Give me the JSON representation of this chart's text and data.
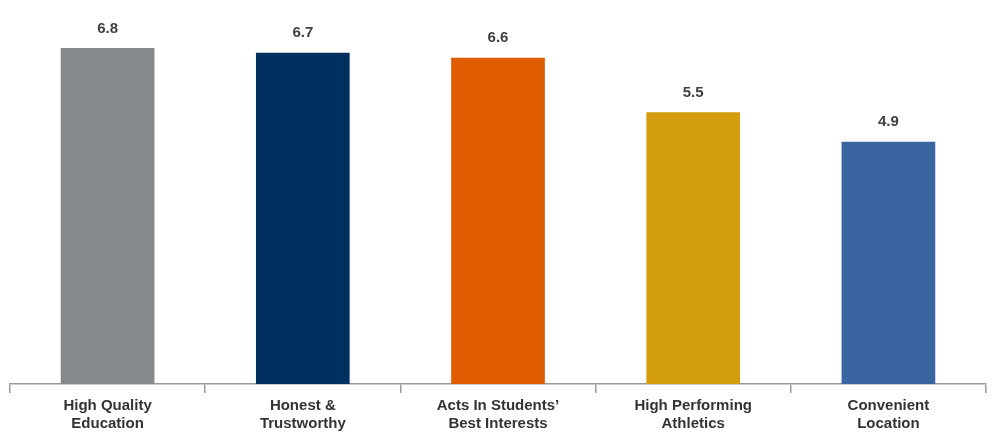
{
  "chart_data": {
    "type": "bar",
    "categories": [
      "High Quality Education",
      "Honest & Trustworthy",
      "Acts In Students’ Best Interests",
      "High Performing Athletics",
      "Convenient Location"
    ],
    "values": [
      6.8,
      6.7,
      6.6,
      5.5,
      4.9
    ],
    "colors": [
      "#86898b",
      "#003060",
      "#e05c00",
      "#d49d10",
      "#3a65a0"
    ],
    "data_labels": true
  }
}
